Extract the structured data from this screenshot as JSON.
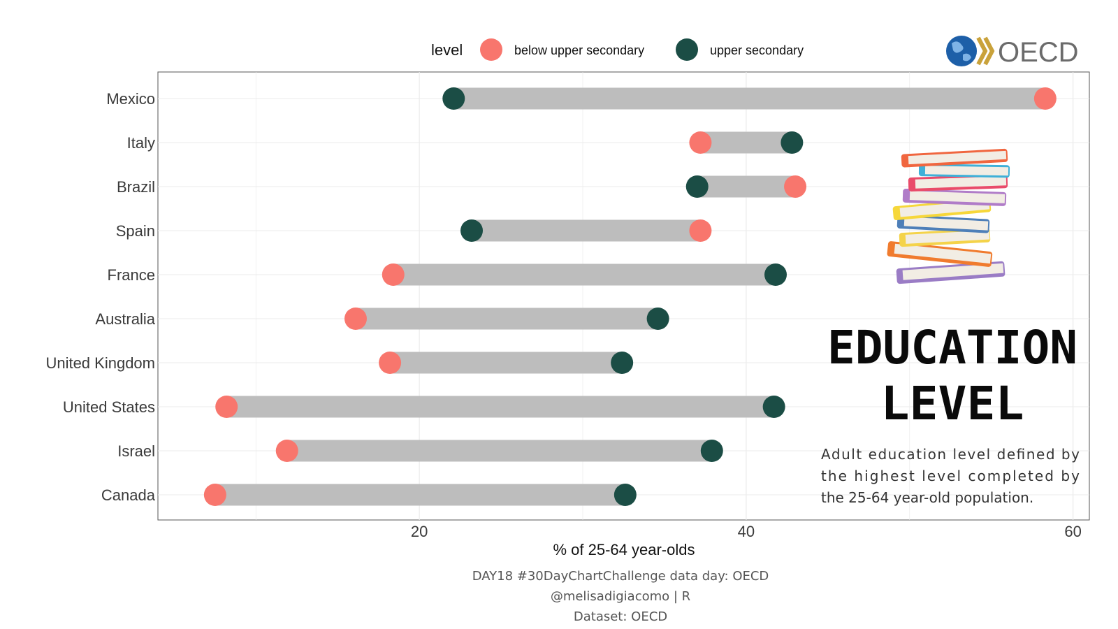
{
  "legend": {
    "title": "level",
    "items": [
      {
        "label": "below upper secondary",
        "color": "#F8766D"
      },
      {
        "label": "upper secondary",
        "color": "#1B4D45"
      }
    ]
  },
  "logo": {
    "text": "OECD"
  },
  "annotation": {
    "title_lines": [
      "EDUCATION",
      "LEVEL"
    ],
    "description_lines": [
      "Adult education level defined by",
      "the highest level completed by",
      "the 25-64 year-old population."
    ]
  },
  "caption_lines": [
    "DAY18 #30DayChartChallenge data day: OECD",
    "@melisadigiacomo | R",
    "Dataset: OECD"
  ],
  "chart_data": {
    "type": "dumbbell",
    "xlabel": "% of 25-64 year-olds",
    "ylabel": "",
    "xlim": [
      4,
      61
    ],
    "xticks": [
      20,
      40,
      60
    ],
    "grid": true,
    "legend_position": "top",
    "categories": [
      "Mexico",
      "Italy",
      "Brazil",
      "Spain",
      "France",
      "Australia",
      "United Kingdom",
      "United States",
      "Israel",
      "Canada"
    ],
    "series": [
      {
        "name": "below upper secondary",
        "color": "#F8766D",
        "values": [
          58.3,
          37.2,
          43.0,
          37.2,
          18.4,
          16.1,
          18.2,
          8.2,
          11.9,
          7.5
        ]
      },
      {
        "name": "upper secondary",
        "color": "#1B4D45",
        "values": [
          22.1,
          42.8,
          37.0,
          23.2,
          41.8,
          34.6,
          32.4,
          41.7,
          37.9,
          32.6
        ]
      }
    ],
    "bar_color": "#BDBDBD"
  }
}
